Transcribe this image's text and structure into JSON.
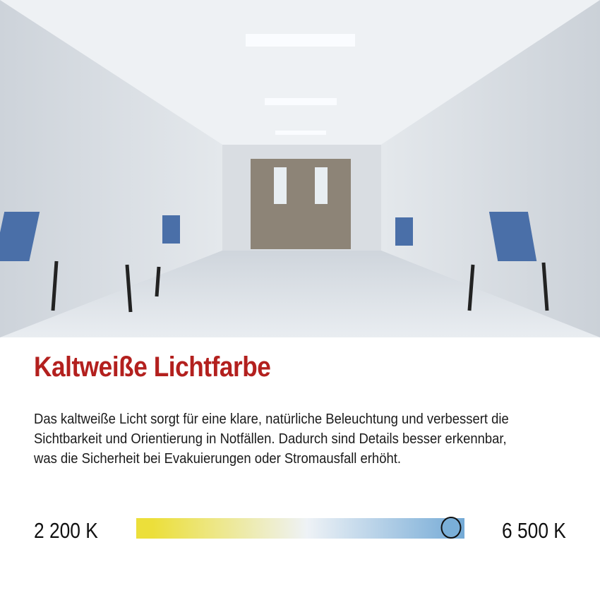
{
  "photo": {
    "description_icon": "hospital-corridor-photo"
  },
  "heading": "Kaltweiße Lichtfarbe",
  "body": "Das kaltweiße Licht sorgt für eine klare, natürliche Beleuchtung und verbessert die Sichtbarkeit und Orientierung in Notfällen. Dadurch sind Details besser erkennbar, was die Sicherheit bei Evakuierungen oder Stromausfall erhöht.",
  "scale": {
    "min_label": "2 200 K",
    "max_label": "6 500 K",
    "value_fraction": 0.96,
    "colors": {
      "warm": "#ecdf3a",
      "neutral": "#eef2f6",
      "cold": "#74aad6"
    }
  },
  "colors": {
    "heading": "#b3201e"
  }
}
